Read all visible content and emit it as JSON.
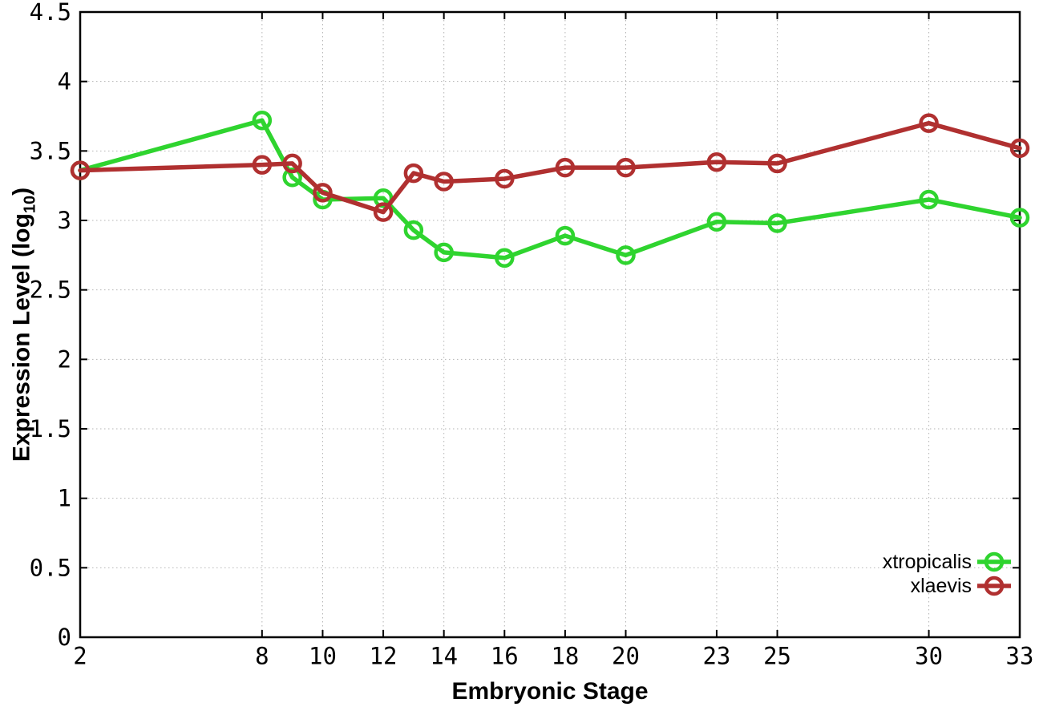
{
  "figure": {
    "title": "",
    "ylabel": {
      "prefix": "Expression Level (log",
      "sub": "10",
      "suffix": ")"
    },
    "xlabel": "Embryonic Stage"
  },
  "colors": {
    "xtropicalis": "#2fd42f",
    "xlaevis": "#b03030",
    "grid": "#b5b5b5",
    "axis": "#000000"
  },
  "chart_data": {
    "type": "line",
    "title": "",
    "xlabel": "Embryonic Stage",
    "ylabel": "Expression Level (log10)",
    "x": [
      2,
      8,
      9,
      10,
      12,
      13,
      14,
      16,
      18,
      20,
      23,
      25,
      30,
      33
    ],
    "series": [
      {
        "name": "xtropicalis",
        "color": "#2fd42f",
        "values": [
          3.36,
          3.72,
          3.31,
          3.15,
          3.16,
          2.93,
          2.77,
          2.73,
          2.89,
          2.75,
          2.99,
          2.98,
          3.15,
          3.02
        ]
      },
      {
        "name": "xlaevis",
        "color": "#b03030",
        "values": [
          3.36,
          3.4,
          3.41,
          3.2,
          3.06,
          3.34,
          3.28,
          3.3,
          3.38,
          3.38,
          3.42,
          3.41,
          3.7,
          3.52
        ]
      }
    ],
    "xlim": [
      2,
      33
    ],
    "ylim": [
      0,
      4.5
    ],
    "xticks": {
      "values": [
        2,
        8,
        10,
        12,
        14,
        16,
        18,
        20,
        23,
        25,
        30,
        33
      ],
      "labels": [
        "2",
        "8",
        "10",
        "12",
        "14",
        "16",
        "18",
        "20",
        "23",
        "25",
        "30",
        "33"
      ]
    },
    "yticks": {
      "values": [
        0,
        0.5,
        1,
        1.5,
        2,
        2.5,
        3,
        3.5,
        4,
        4.5
      ],
      "labels": [
        "0",
        "0.5",
        "1",
        "1.5",
        "2",
        "2.5",
        "3",
        "3.5",
        "4",
        "4.5"
      ]
    },
    "grid": true,
    "marker": "open-circle",
    "legend_position": "inside-bottom-right",
    "legend": [
      "xtropicalis",
      "xlaevis"
    ]
  }
}
